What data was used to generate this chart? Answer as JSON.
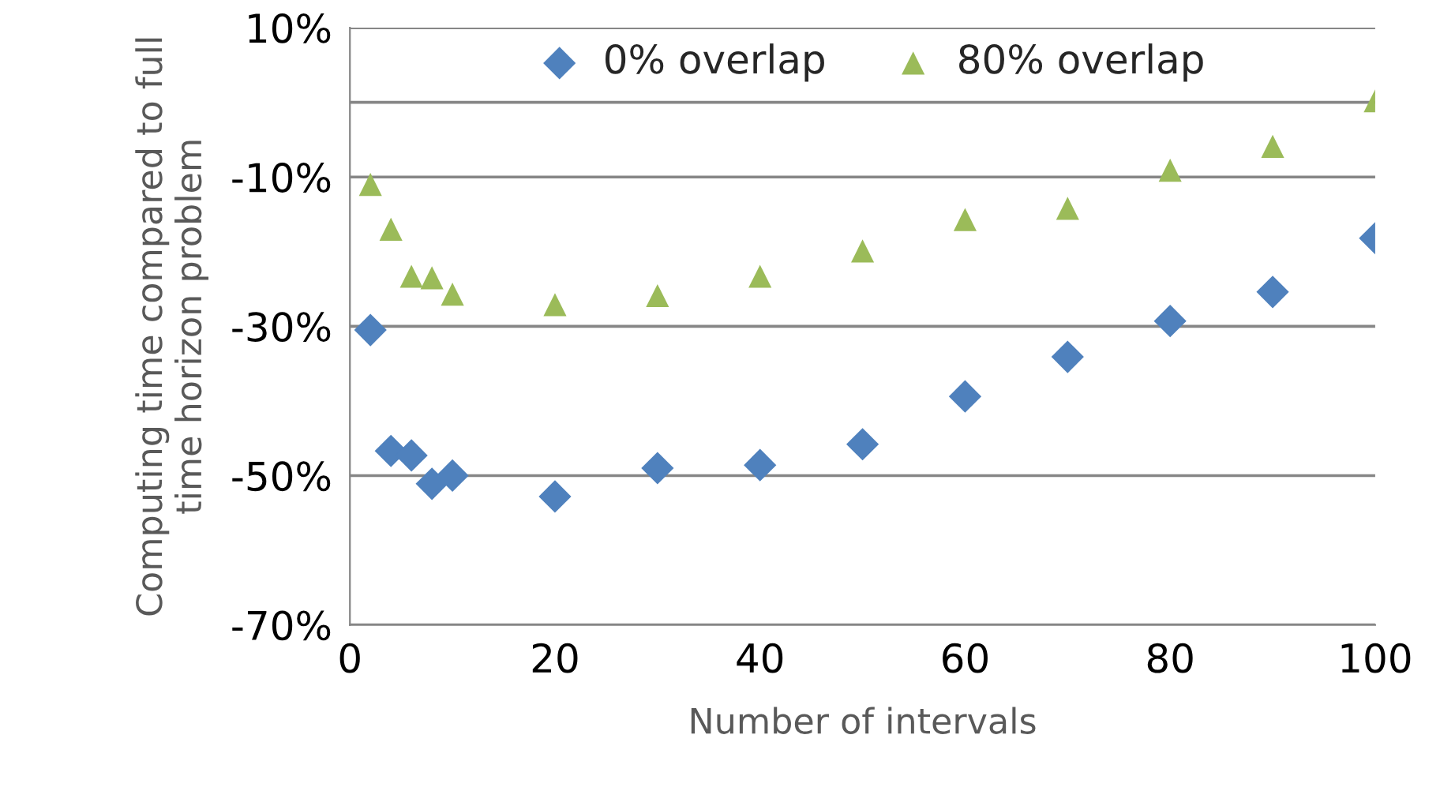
{
  "chart_data": {
    "type": "scatter",
    "xlabel": "Number of intervals",
    "ylabel": "Computing time compared to full\ntime horizon problem",
    "x": [
      2,
      4,
      6,
      8,
      10,
      20,
      30,
      40,
      50,
      60,
      70,
      80,
      90,
      100
    ],
    "series": [
      {
        "name": "0% overlap",
        "color": "#4f81bd",
        "marker": "diamond",
        "values": [
          -30.5,
          -46.7,
          -47.3,
          -51.1,
          -50,
          -52.8,
          -49,
          -48.6,
          -45.8,
          -39.4,
          -34.1,
          -29.3,
          -25.4,
          -18.2
        ]
      },
      {
        "name": "80% overlap",
        "color": "#9bbb59",
        "marker": "triangle",
        "values": [
          -11,
          -17,
          -23.3,
          -23.5,
          -25.7,
          -27.1,
          -25.9,
          -23.3,
          -19.9,
          -15.7,
          -14.2,
          -9.1,
          -5.9,
          0.2
        ]
      }
    ],
    "xlim": [
      0,
      100
    ],
    "xticks": [
      0,
      20,
      40,
      60,
      80,
      100
    ],
    "ylim": [
      -70,
      10
    ],
    "yticks": [
      {
        "value": 10,
        "label": "10%"
      },
      {
        "value": -10,
        "label": "-10%"
      },
      {
        "value": -30,
        "label": "-30%"
      },
      {
        "value": -50,
        "label": "-50%"
      },
      {
        "value": -70,
        "label": "-70%"
      }
    ],
    "ref_lines": [
      {
        "axis": "y",
        "value": 0,
        "color": "#868686"
      }
    ],
    "grid": "y",
    "legend": "top"
  }
}
